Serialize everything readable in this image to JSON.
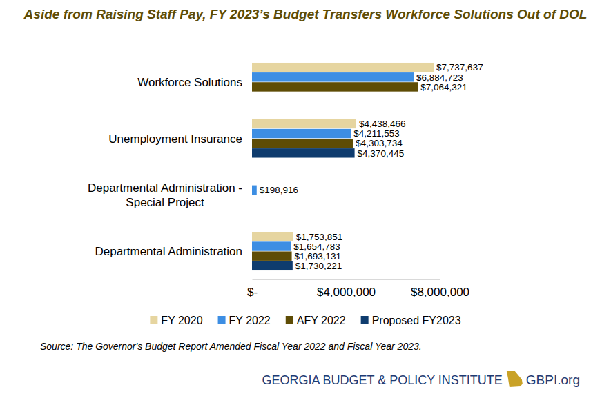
{
  "chart_data": {
    "type": "bar",
    "orientation": "horizontal",
    "title": "Aside from Raising Staff Pay, FY 2023’s Budget Transfers Workforce Solutions Out of DOL",
    "categories": [
      "Workforce Solutions",
      "Unemployment Insurance",
      "Departmental Administration - Special Project",
      "Departmental Administration"
    ],
    "series": [
      {
        "name": "FY 2020",
        "color": "#e6d5a0",
        "values": [
          7737637,
          4438466,
          null,
          1753851
        ],
        "value_labels": [
          "$7,737,637",
          "$4,438,466",
          null,
          "$1,753,851"
        ]
      },
      {
        "name": "FY 2022",
        "color": "#3d8ee3",
        "values": [
          6884723,
          4211553,
          198916,
          1654783
        ],
        "value_labels": [
          "$6,884,723",
          "$4,211,553",
          "$198,916",
          "$1,654,783"
        ]
      },
      {
        "name": "AFY 2022",
        "color": "#5e4c05",
        "values": [
          7064321,
          4303734,
          null,
          1693131
        ],
        "value_labels": [
          "$7,064,321",
          "$4,303,734",
          null,
          "$1,693,131"
        ]
      },
      {
        "name": "Proposed FY2023",
        "color": "#0f3c6e",
        "values": [
          null,
          4370445,
          null,
          1730221
        ],
        "value_labels": [
          null,
          "$4,370,445",
          null,
          "$1,730,221"
        ]
      }
    ],
    "xlim": [
      0,
      8000000
    ],
    "xticks": [
      {
        "value": 0,
        "label": "$-"
      },
      {
        "value": 4000000,
        "label": "$4,000,000"
      },
      {
        "value": 8000000,
        "label": "$8,000,000"
      }
    ],
    "grid": false,
    "data_labels": true,
    "legend": "bottom",
    "annotations": [
      "Source: The Governor's Budget Report Amended Fiscal Year 2022 and Fiscal Year 2023.",
      "GEORGIA BUDGET & POLICY INSTITUTE",
      "GBPI.org"
    ]
  }
}
